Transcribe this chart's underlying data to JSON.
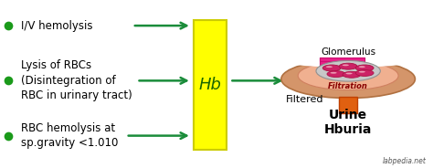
{
  "bg_color": "#ffffff",
  "text_color": "#000000",
  "bullet_color": "#1a9a1a",
  "arrow_color": "#1a8c3a",
  "hb_box_color": "#ffff00",
  "hb_box_edge": "#cccc00",
  "hb_text": "Hb",
  "hb_text_color": "#1a6600",
  "bullets": [
    "I/V hemolysis",
    "Lysis of RBCs\n(Disintegration of\nRBC in urinary tract)",
    "RBC hemolysis at\nsp.gravity <1.010"
  ],
  "glomerulus_label": "Glomerulus",
  "filtration_label": "Filtration",
  "filtered_label": "Filtered",
  "urine_label": "Urine\nHburia",
  "watermark": "labpedia.net",
  "kidney_outer_color": "#d4956a",
  "kidney_outer_edge": "#b07040",
  "kidney_inner_color": "#f0b090",
  "kidney_inner_edge": "#d08060",
  "glom_ball_color": "#c8c8c8",
  "glom_ball_edge": "#909090",
  "rbc_color": "#cc2266",
  "rbc_edge": "#aa1144",
  "rbc_highlight": "#f0b0c0",
  "tube_pink_color": "#e8208a",
  "tube_pink_edge": "#cc1070",
  "ureter_color": "#e06010",
  "ureter_edge": "#c04000",
  "figsize": [
    4.74,
    1.84
  ],
  "dpi": 100
}
